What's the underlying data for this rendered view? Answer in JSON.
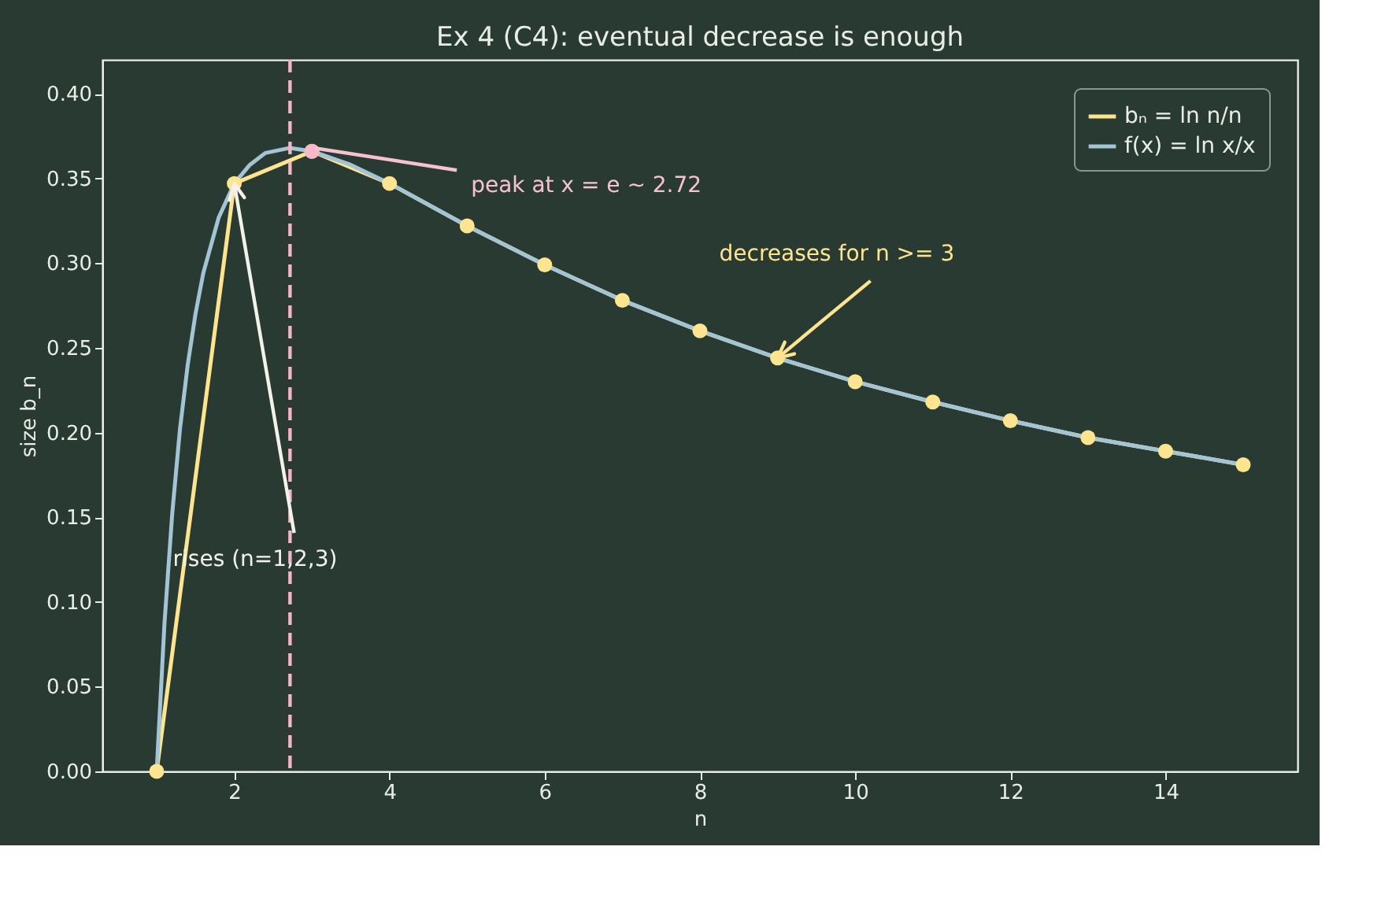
{
  "chart_data": {
    "type": "line",
    "title": "Ex 4 (C4): eventual decrease is enough",
    "xlabel": "n",
    "ylabel": "size  b_n",
    "xlim": [
      0.3,
      15.7
    ],
    "ylim": [
      0,
      0.42
    ],
    "xticks": [
      2,
      4,
      6,
      8,
      10,
      12,
      14
    ],
    "yticks": [
      {
        "value": 0,
        "label": "0.00"
      },
      {
        "value": 0.05,
        "label": "0.05"
      },
      {
        "value": 0.1,
        "label": "0.10"
      },
      {
        "value": 0.15,
        "label": "0.15"
      },
      {
        "value": 0.2,
        "label": "0.20"
      },
      {
        "value": 0.25,
        "label": "0.25"
      },
      {
        "value": 0.3,
        "label": "0.30"
      },
      {
        "value": 0.35,
        "label": "0.35"
      },
      {
        "value": 0.4,
        "label": "0.40"
      }
    ],
    "grid": false,
    "legend": "top right",
    "series": [
      {
        "name": "bₙ = ln n/n",
        "marker": "circle",
        "color": "#fde48e",
        "x": [
          1,
          2,
          3,
          4,
          5,
          6,
          7,
          8,
          9,
          10,
          11,
          12,
          13,
          14,
          15
        ],
        "values": [
          0,
          0.347,
          0.366,
          0.347,
          0.322,
          0.299,
          0.278,
          0.26,
          0.244,
          0.23,
          0.218,
          0.207,
          0.197,
          0.189,
          0.181
        ]
      },
      {
        "name": "f(x) = ln x/x",
        "marker": "none",
        "color": "#a3c4d4",
        "x": [
          1,
          1.1,
          1.2,
          1.3,
          1.4,
          1.5,
          1.6,
          1.8,
          2,
          2.2,
          2.4,
          2.718,
          3,
          3.5,
          4,
          5,
          6,
          7,
          8,
          9,
          10,
          11,
          12,
          13,
          14,
          15
        ],
        "values": [
          0,
          0.087,
          0.152,
          0.202,
          0.24,
          0.27,
          0.294,
          0.327,
          0.347,
          0.358,
          0.365,
          0.368,
          0.366,
          0.358,
          0.347,
          0.322,
          0.299,
          0.278,
          0.26,
          0.244,
          0.23,
          0.218,
          0.207,
          0.197,
          0.189,
          0.181
        ]
      },
      {
        "type": "scatter",
        "marker": "circle",
        "color": "#f7b8c8",
        "x": [
          3
        ],
        "values": [
          0.366
        ]
      }
    ],
    "ref_lines": [
      {
        "axis": "x",
        "value": 2.718,
        "color": "#f4b6c6",
        "line_style": "dashed"
      }
    ],
    "annotations": [
      {
        "text": "peak at x = e ~ 2.72",
        "x": 3,
        "y": 0.366
      },
      {
        "text": "rises (n=1,2,3)",
        "x": 2,
        "y": 0.347
      },
      {
        "text": "decreases for n >= 3",
        "x": 9,
        "y": 0.244
      }
    ]
  }
}
